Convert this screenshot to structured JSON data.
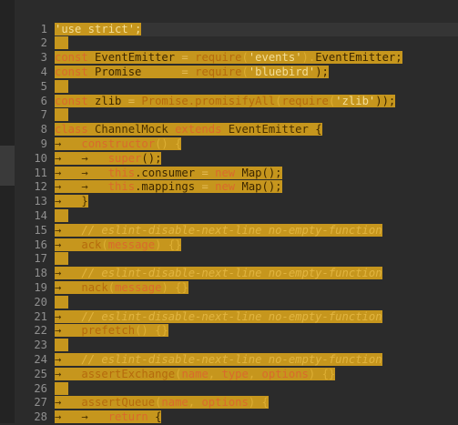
{
  "editor": {
    "line_numbers": [
      "1",
      "2",
      "3",
      "4",
      "5",
      "6",
      "7",
      "8",
      "9",
      "10",
      "11",
      "12",
      "13",
      "14",
      "15",
      "16",
      "17",
      "18",
      "19",
      "20",
      "21",
      "22",
      "23",
      "24",
      "25",
      "26",
      "27",
      "28"
    ],
    "lines": [
      [
        {
          "t": "'use strict';",
          "c": "str"
        }
      ],
      [],
      [
        {
          "t": "const",
          "c": "kw"
        },
        {
          "t": " ",
          "c": "sp"
        },
        {
          "t": "EventEmitter",
          "c": "txt"
        },
        {
          "t": " = ",
          "c": "sp"
        },
        {
          "t": "require",
          "c": "fn"
        },
        {
          "t": "(",
          "c": "dim"
        },
        {
          "t": "'events'",
          "c": "str"
        },
        {
          "t": ").",
          "c": "dim"
        },
        {
          "t": "EventEmitter;",
          "c": "txt"
        }
      ],
      [
        {
          "t": "const",
          "c": "kw"
        },
        {
          "t": " ",
          "c": "sp"
        },
        {
          "t": "Promise",
          "c": "txt"
        },
        {
          "t": "      = ",
          "c": "sp"
        },
        {
          "t": "require",
          "c": "fn"
        },
        {
          "t": "(",
          "c": "dim"
        },
        {
          "t": "'bluebird'",
          "c": "str"
        },
        {
          "t": ");",
          "c": "txt"
        }
      ],
      [],
      [
        {
          "t": "const",
          "c": "kw"
        },
        {
          "t": " ",
          "c": "sp"
        },
        {
          "t": "zlib",
          "c": "txt"
        },
        {
          "t": " = ",
          "c": "sp"
        },
        {
          "t": "Promise.promisifyAll",
          "c": "fn"
        },
        {
          "t": "(",
          "c": "dim"
        },
        {
          "t": "require",
          "c": "fn"
        },
        {
          "t": "(",
          "c": "dim"
        },
        {
          "t": "'zlib'",
          "c": "str"
        },
        {
          "t": "));",
          "c": "txt"
        }
      ],
      [],
      [
        {
          "t": "class",
          "c": "kw"
        },
        {
          "t": " ",
          "c": "sp"
        },
        {
          "t": "ChannelMock",
          "c": "cls"
        },
        {
          "t": " extends ",
          "c": "kw"
        },
        {
          "t": "EventEmitter",
          "c": "cls"
        },
        {
          "t": " {",
          "c": "txt"
        }
      ],
      [
        {
          "t": "→   ",
          "c": "arw"
        },
        {
          "t": "constructor",
          "c": "kw"
        },
        {
          "t": "() {",
          "c": "dim"
        }
      ],
      [
        {
          "t": "→   →   ",
          "c": "arw"
        },
        {
          "t": "super",
          "c": "kw"
        },
        {
          "t": "();",
          "c": "txt"
        }
      ],
      [
        {
          "t": "→   →   ",
          "c": "arw"
        },
        {
          "t": "this",
          "c": "kw"
        },
        {
          "t": ".consumer",
          "c": "txt"
        },
        {
          "t": " = ",
          "c": "sp"
        },
        {
          "t": "new",
          "c": "kw"
        },
        {
          "t": " ",
          "c": "sp"
        },
        {
          "t": "Map();",
          "c": "txt"
        }
      ],
      [
        {
          "t": "→   →   ",
          "c": "arw"
        },
        {
          "t": "this",
          "c": "kw"
        },
        {
          "t": ".mappings",
          "c": "txt"
        },
        {
          "t": " = ",
          "c": "sp"
        },
        {
          "t": "new",
          "c": "kw"
        },
        {
          "t": " ",
          "c": "sp"
        },
        {
          "t": "Map();",
          "c": "txt"
        }
      ],
      [
        {
          "t": "→   }",
          "c": "arw"
        }
      ],
      [],
      [
        {
          "t": "→   ",
          "c": "arw"
        },
        {
          "t": "// eslint-disable-next-line no-empty-function",
          "c": "cm"
        }
      ],
      [
        {
          "t": "→   ",
          "c": "arw"
        },
        {
          "t": "ack",
          "c": "fn"
        },
        {
          "t": "(",
          "c": "dim"
        },
        {
          "t": "message",
          "c": "kw"
        },
        {
          "t": ") {}",
          "c": "dim"
        }
      ],
      [],
      [
        {
          "t": "→   ",
          "c": "arw"
        },
        {
          "t": "// eslint-disable-next-line no-empty-function",
          "c": "cm"
        }
      ],
      [
        {
          "t": "→   ",
          "c": "arw"
        },
        {
          "t": "nack",
          "c": "fn"
        },
        {
          "t": "(",
          "c": "dim"
        },
        {
          "t": "message",
          "c": "kw"
        },
        {
          "t": ") {}",
          "c": "dim"
        }
      ],
      [],
      [
        {
          "t": "→   ",
          "c": "arw"
        },
        {
          "t": "// eslint-disable-next-line no-empty-function",
          "c": "cm"
        }
      ],
      [
        {
          "t": "→   ",
          "c": "arw"
        },
        {
          "t": "prefetch",
          "c": "fn"
        },
        {
          "t": "() {}",
          "c": "dim"
        }
      ],
      [],
      [
        {
          "t": "→   ",
          "c": "arw"
        },
        {
          "t": "// eslint-disable-next-line no-empty-function",
          "c": "cm"
        }
      ],
      [
        {
          "t": "→   ",
          "c": "arw"
        },
        {
          "t": "assertExchange",
          "c": "fn"
        },
        {
          "t": "(",
          "c": "dim"
        },
        {
          "t": "name",
          "c": "kw"
        },
        {
          "t": ", ",
          "c": "dim"
        },
        {
          "t": "type",
          "c": "kw"
        },
        {
          "t": ", ",
          "c": "dim"
        },
        {
          "t": "options",
          "c": "kw"
        },
        {
          "t": ") {}",
          "c": "dim"
        }
      ],
      [],
      [
        {
          "t": "→   ",
          "c": "arw"
        },
        {
          "t": "assertQueue",
          "c": "fn"
        },
        {
          "t": "(",
          "c": "dim"
        },
        {
          "t": "name",
          "c": "kw"
        },
        {
          "t": ", ",
          "c": "dim"
        },
        {
          "t": "options",
          "c": "kw"
        },
        {
          "t": ") {",
          "c": "dim"
        }
      ],
      [
        {
          "t": "→   →   ",
          "c": "arw"
        },
        {
          "t": "return",
          "c": "kw"
        },
        {
          "t": " {",
          "c": "txt"
        }
      ]
    ]
  }
}
